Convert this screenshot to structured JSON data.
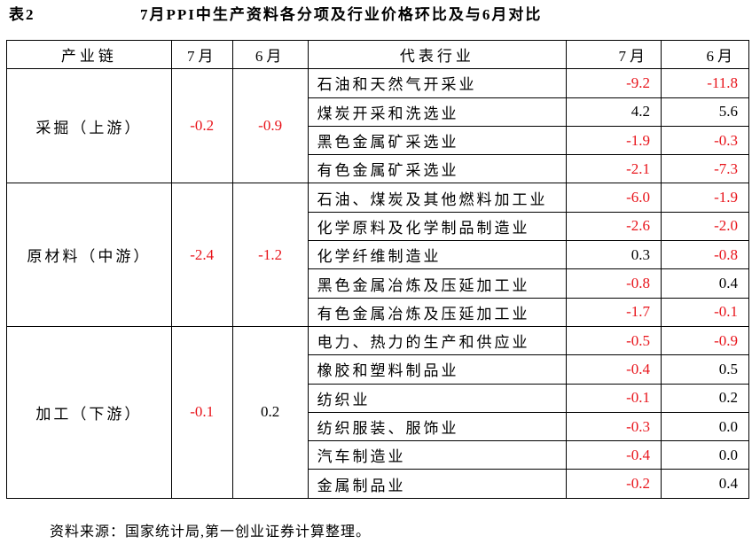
{
  "title": {
    "label": "表2",
    "text": "7月PPI中生产资料各分项及行业价格环比及与6月对比"
  },
  "table": {
    "header": [
      "产业链",
      "7月",
      "6月",
      "代表行业",
      "7月",
      "6月"
    ],
    "groups": [
      {
        "name": "采掘（上游）",
        "jul": "-0.2",
        "jun": "-0.9",
        "rows": [
          [
            "石油和天然气开采业",
            "-9.2",
            "-11.8"
          ],
          [
            "煤炭开采和洗选业",
            "4.2",
            "5.6"
          ],
          [
            "黑色金属矿采选业",
            "-1.9",
            "-0.3"
          ],
          [
            "有色金属矿采选业",
            "-2.1",
            "-7.3"
          ]
        ]
      },
      {
        "name": "原材料（中游）",
        "jul": "-2.4",
        "jun": "-1.2",
        "rows": [
          [
            "石油、煤炭及其他燃料加工业",
            "-6.0",
            "-1.9"
          ],
          [
            "化学原料及化学制品制造业",
            "-2.6",
            "-2.0"
          ],
          [
            "化学纤维制造业",
            "0.3",
            "-0.8"
          ],
          [
            "黑色金属冶炼及压延加工业",
            "-0.8",
            "0.4"
          ],
          [
            "有色金属冶炼及压延加工业",
            "-1.7",
            "-0.1"
          ]
        ]
      },
      {
        "name": "加工（下游）",
        "jul": "-0.1",
        "jun": "0.2",
        "rows": [
          [
            "电力、热力的生产和供应业",
            "-0.5",
            "-0.9"
          ],
          [
            "橡胶和塑料制品业",
            "-0.4",
            "0.5"
          ],
          [
            "纺织业",
            "-0.1",
            "0.2"
          ],
          [
            "纺织服装、服饰业",
            "-0.3",
            "0.0"
          ],
          [
            "汽车制造业",
            "-0.4",
            "0.0"
          ],
          [
            "金属制品业",
            "-0.2",
            "0.4"
          ]
        ]
      }
    ]
  },
  "source": "资料来源：国家统计局,第一创业证券计算整理。"
}
